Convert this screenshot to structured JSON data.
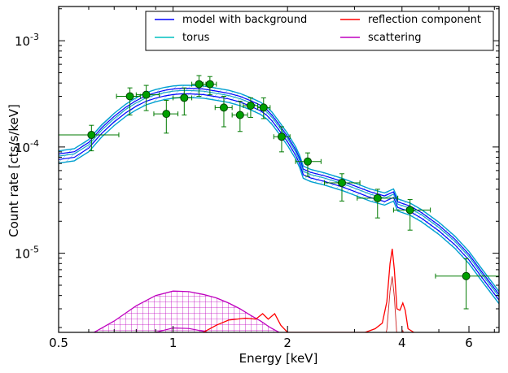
{
  "chart_data": {
    "type": "line",
    "xlabel": "Energy [keV]",
    "ylabel": "Count rate [cts/s/keV]",
    "xscale": "log",
    "yscale": "log",
    "xlim": [
      0.5,
      7.2
    ],
    "ylim": [
      1.8e-06,
      0.0021
    ],
    "x_ticks": [
      {
        "value": 0.5,
        "label": "0.5"
      },
      {
        "value": 1,
        "label": "1"
      },
      {
        "value": 2,
        "label": "2"
      },
      {
        "value": 4,
        "label": "4"
      },
      {
        "value": 6,
        "label": "6"
      }
    ],
    "y_ticks": [
      {
        "value": 0.001,
        "base": "10",
        "exp": "-3"
      },
      {
        "value": 0.0001,
        "base": "10",
        "exp": "-4"
      },
      {
        "value": 1e-05,
        "base": "10",
        "exp": "-5"
      }
    ],
    "legend_placement": "top-right",
    "legend": [
      {
        "label": "model with background",
        "color": "#0000ff"
      },
      {
        "label": "torus",
        "color": "#00bfbf"
      },
      {
        "label": "reflection component",
        "color": "#ff0000"
      },
      {
        "label": "scattering",
        "color": "#bf00bf"
      }
    ],
    "data_points": [
      {
        "x": 0.61,
        "y": 0.00013,
        "xlo": 0.5,
        "xhi": 0.72,
        "ylo": 9.2e-05,
        "yhi": 0.00016
      },
      {
        "x": 0.77,
        "y": 0.0003,
        "xlo": 0.71,
        "xhi": 0.82,
        "ylo": 0.0002,
        "yhi": 0.00036
      },
      {
        "x": 0.85,
        "y": 0.00031,
        "xlo": 0.8,
        "xhi": 0.92,
        "ylo": 0.00022,
        "yhi": 0.00038
      },
      {
        "x": 0.96,
        "y": 0.000205,
        "xlo": 0.89,
        "xhi": 1.03,
        "ylo": 0.000135,
        "yhi": 0.000275
      },
      {
        "x": 1.07,
        "y": 0.00029,
        "xlo": 1.0,
        "xhi": 1.12,
        "ylo": 0.0002,
        "yhi": 0.00036
      },
      {
        "x": 1.17,
        "y": 0.00039,
        "xlo": 1.12,
        "xhi": 1.22,
        "ylo": 0.0003,
        "yhi": 0.00047
      },
      {
        "x": 1.25,
        "y": 0.00039,
        "xlo": 1.2,
        "xhi": 1.3,
        "ylo": 0.00031,
        "yhi": 0.00046
      },
      {
        "x": 1.36,
        "y": 0.000235,
        "xlo": 1.29,
        "xhi": 1.43,
        "ylo": 0.000155,
        "yhi": 0.0003
      },
      {
        "x": 1.5,
        "y": 0.0002,
        "xlo": 1.43,
        "xhi": 1.57,
        "ylo": 0.00014,
        "yhi": 0.00027
      },
      {
        "x": 1.6,
        "y": 0.000245,
        "xlo": 1.53,
        "xhi": 1.67,
        "ylo": 0.00019,
        "yhi": 0.00029
      },
      {
        "x": 1.73,
        "y": 0.000235,
        "xlo": 1.67,
        "xhi": 1.8,
        "ylo": 0.000185,
        "yhi": 0.00029
      },
      {
        "x": 1.93,
        "y": 0.000125,
        "xlo": 1.84,
        "xhi": 2.03,
        "ylo": 9e-05,
        "yhi": 0.000155
      },
      {
        "x": 2.26,
        "y": 7.3e-05,
        "xlo": 2.1,
        "xhi": 2.45,
        "ylo": 5.3e-05,
        "yhi": 8.8e-05
      },
      {
        "x": 2.78,
        "y": 4.6e-05,
        "xlo": 2.5,
        "xhi": 3.1,
        "ylo": 3.1e-05,
        "yhi": 5.6e-05
      },
      {
        "x": 3.45,
        "y": 3.3e-05,
        "xlo": 3.05,
        "xhi": 3.9,
        "ylo": 2.15e-05,
        "yhi": 4e-05
      },
      {
        "x": 4.2,
        "y": 2.55e-05,
        "xlo": 3.8,
        "xhi": 4.75,
        "ylo": 1.65e-05,
        "yhi": 3.2e-05
      },
      {
        "x": 5.9,
        "y": 6.1e-06,
        "xlo": 4.9,
        "xhi": 7.2,
        "ylo": 3e-06,
        "yhi": 8.9e-06
      }
    ],
    "model": [
      {
        "x": 0.5,
        "y": 8.2e-05
      },
      {
        "x": 0.55,
        "y": 8.6e-05
      },
      {
        "x": 0.6,
        "y": 0.000105
      },
      {
        "x": 0.65,
        "y": 0.000145
      },
      {
        "x": 0.7,
        "y": 0.000185
      },
      {
        "x": 0.75,
        "y": 0.000225
      },
      {
        "x": 0.8,
        "y": 0.00026
      },
      {
        "x": 0.85,
        "y": 0.00029
      },
      {
        "x": 0.9,
        "y": 0.00031
      },
      {
        "x": 0.95,
        "y": 0.000325
      },
      {
        "x": 1.0,
        "y": 0.000335
      },
      {
        "x": 1.05,
        "y": 0.00034
      },
      {
        "x": 1.1,
        "y": 0.00034
      },
      {
        "x": 1.2,
        "y": 0.000335
      },
      {
        "x": 1.3,
        "y": 0.00032
      },
      {
        "x": 1.4,
        "y": 0.000305
      },
      {
        "x": 1.5,
        "y": 0.000285
      },
      {
        "x": 1.6,
        "y": 0.00026
      },
      {
        "x": 1.7,
        "y": 0.000235
      },
      {
        "x": 1.76,
        "y": 0.000215
      },
      {
        "x": 1.82,
        "y": 0.00019
      },
      {
        "x": 1.9,
        "y": 0.000155
      },
      {
        "x": 2.0,
        "y": 0.00012
      },
      {
        "x": 2.1,
        "y": 9e-05
      },
      {
        "x": 2.15,
        "y": 7.5e-05
      },
      {
        "x": 2.2,
        "y": 5.9e-05
      },
      {
        "x": 2.3,
        "y": 5.5e-05
      },
      {
        "x": 2.5,
        "y": 5.1e-05
      },
      {
        "x": 2.8,
        "y": 4.5e-05
      },
      {
        "x": 3.0,
        "y": 4.1e-05
      },
      {
        "x": 3.3,
        "y": 3.6e-05
      },
      {
        "x": 3.6,
        "y": 3.3e-05
      },
      {
        "x": 3.8,
        "y": 3.6e-05
      },
      {
        "x": 3.9,
        "y": 2.9e-05
      },
      {
        "x": 4.2,
        "y": 2.65e-05
      },
      {
        "x": 4.5,
        "y": 2.3e-05
      },
      {
        "x": 5.0,
        "y": 1.75e-05
      },
      {
        "x": 5.5,
        "y": 1.3e-05
      },
      {
        "x": 6.0,
        "y": 9.3e-06
      },
      {
        "x": 6.5,
        "y": 6.3e-06
      },
      {
        "x": 7.2,
        "y": 3.9e-06
      }
    ],
    "scattering": [
      {
        "x": 0.62,
        "y": 1.8e-06
      },
      {
        "x": 0.7,
        "y": 2.3e-06
      },
      {
        "x": 0.8,
        "y": 3.2e-06
      },
      {
        "x": 0.9,
        "y": 4e-06
      },
      {
        "x": 1.0,
        "y": 4.4e-06
      },
      {
        "x": 1.1,
        "y": 4.35e-06
      },
      {
        "x": 1.2,
        "y": 4.1e-06
      },
      {
        "x": 1.3,
        "y": 3.8e-06
      },
      {
        "x": 1.4,
        "y": 3.4e-06
      },
      {
        "x": 1.5,
        "y": 3e-06
      },
      {
        "x": 1.6,
        "y": 2.6e-06
      },
      {
        "x": 1.7,
        "y": 2.3e-06
      },
      {
        "x": 1.8,
        "y": 2e-06
      },
      {
        "x": 1.9,
        "y": 1.8e-06
      }
    ],
    "scattering_lower": [
      {
        "x": 0.62,
        "y": 1.8e-06
      },
      {
        "x": 0.8,
        "y": 1.8e-06
      },
      {
        "x": 1.0,
        "y": 1.8e-06
      },
      {
        "x": 1.9,
        "y": 1.8e-06
      }
    ],
    "reflection": [
      {
        "x": 1.2,
        "y": 1.8e-06
      },
      {
        "x": 1.3,
        "y": 2.1e-06
      },
      {
        "x": 1.4,
        "y": 2.35e-06
      },
      {
        "x": 1.55,
        "y": 2.45e-06
      },
      {
        "x": 1.65,
        "y": 2.4e-06
      },
      {
        "x": 1.72,
        "y": 2.7e-06
      },
      {
        "x": 1.78,
        "y": 2.4e-06
      },
      {
        "x": 1.85,
        "y": 2.7e-06
      },
      {
        "x": 1.92,
        "y": 2.1e-06
      },
      {
        "x": 2.0,
        "y": 1.8e-06
      },
      {
        "x": 3.2,
        "y": 1.8e-06
      },
      {
        "x": 3.4,
        "y": 1.95e-06
      },
      {
        "x": 3.55,
        "y": 2.2e-06
      },
      {
        "x": 3.65,
        "y": 3.5e-06
      },
      {
        "x": 3.72,
        "y": 8e-06
      },
      {
        "x": 3.77,
        "y": 1.1e-05
      },
      {
        "x": 3.82,
        "y": 7e-06
      },
      {
        "x": 3.88,
        "y": 3e-06
      },
      {
        "x": 3.95,
        "y": 2.9e-06
      },
      {
        "x": 4.02,
        "y": 3.4e-06
      },
      {
        "x": 4.08,
        "y": 2.9e-06
      },
      {
        "x": 4.15,
        "y": 1.95e-06
      },
      {
        "x": 4.3,
        "y": 1.8e-06
      }
    ]
  }
}
